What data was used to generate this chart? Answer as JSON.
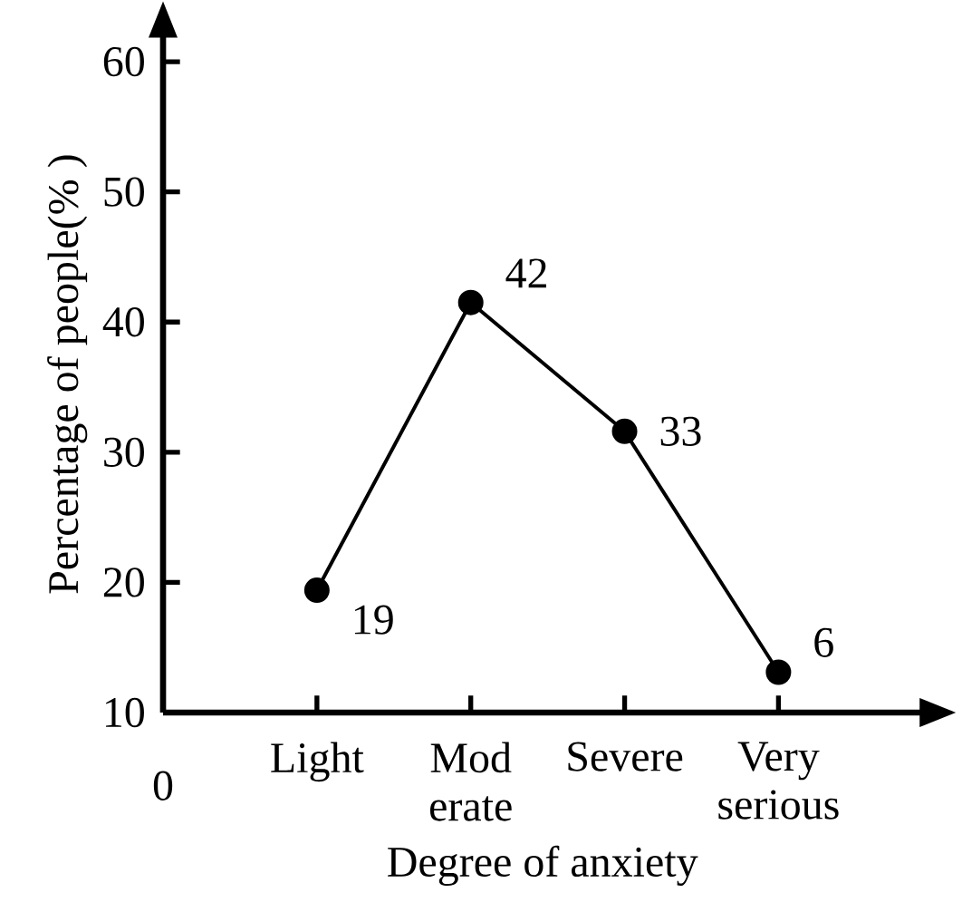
{
  "chart_data": {
    "type": "line",
    "xlabel": "Degree of anxiety",
    "ylabel": "Percentage of people(% )",
    "categories": [
      "Light",
      "Mod erate",
      "Severe",
      "Very serious"
    ],
    "series": [
      {
        "color": "#000000",
        "values": [
          19.4,
          41.5,
          31.6,
          13.1
        ]
      }
    ],
    "ylim": [
      10,
      62
    ],
    "yticks": [
      10,
      20,
      30,
      40,
      50,
      60
    ],
    "marker": "circle",
    "line_style": "solid",
    "grid": false,
    "annotations": [
      "0",
      {
        "text": "19",
        "x": "Light",
        "y": 19.4
      },
      {
        "text": "42",
        "x": "Mod erate",
        "y": 41.5
      },
      {
        "text": "33",
        "x": "Severe",
        "y": 31.6
      },
      {
        "text": "6",
        "x": "Very serious",
        "y": 13.1
      }
    ]
  }
}
